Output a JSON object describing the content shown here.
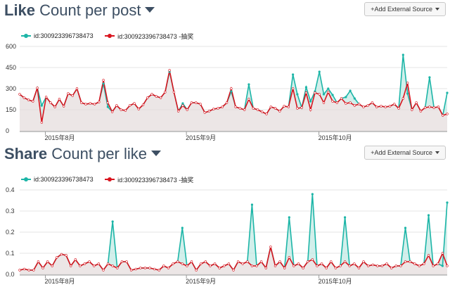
{
  "panels": [
    {
      "title_bold": "Like",
      "title_rest": " Count per post",
      "button_label": "+Add External Source"
    },
    {
      "title_bold": "Share",
      "title_rest": " Count per like",
      "button_label": "+Add External Source"
    }
  ],
  "colors": {
    "teal": "#1cb5a7",
    "red": "#d9141e",
    "fill": "#e6dede"
  },
  "chart_data": [
    {
      "type": "line",
      "title": "Like Count per post",
      "x_labels": [
        "2015年8月",
        "2015年9月",
        "2015年10月"
      ],
      "y_ticks": [
        "0",
        "150",
        "300",
        "450",
        "600"
      ],
      "ylim": [
        0,
        600
      ],
      "series": [
        {
          "name": "id:300923396738473",
          "values": [
            260,
            235,
            220,
            210,
            305,
            180,
            240,
            200,
            170,
            225,
            175,
            265,
            250,
            300,
            200,
            190,
            195,
            190,
            205,
            335,
            170,
            135,
            180,
            150,
            145,
            180,
            195,
            155,
            185,
            235,
            260,
            245,
            235,
            275,
            420,
            275,
            140,
            195,
            150,
            200,
            200,
            190,
            130,
            140,
            155,
            160,
            170,
            200,
            280,
            170,
            160,
            150,
            330,
            160,
            150,
            135,
            120,
            170,
            160,
            140,
            175,
            170,
            400,
            260,
            165,
            310,
            210,
            280,
            420,
            260,
            300,
            255,
            200,
            230,
            240,
            285,
            230,
            190,
            170,
            180,
            200,
            170,
            175,
            170,
            175,
            190,
            160,
            540,
            265,
            150,
            200,
            140,
            165,
            380,
            165,
            170,
            110,
            270
          ]
        },
        {
          "name": "id:300923396738473 -抽奖",
          "values": [
            260,
            235,
            220,
            210,
            305,
            60,
            240,
            200,
            170,
            225,
            175,
            265,
            250,
            300,
            200,
            190,
            195,
            190,
            205,
            360,
            200,
            135,
            180,
            150,
            145,
            180,
            195,
            155,
            185,
            235,
            260,
            245,
            235,
            275,
            430,
            275,
            140,
            180,
            150,
            200,
            200,
            190,
            130,
            140,
            155,
            160,
            170,
            200,
            300,
            170,
            160,
            150,
            225,
            160,
            150,
            135,
            120,
            170,
            160,
            140,
            175,
            170,
            300,
            160,
            165,
            270,
            150,
            270,
            260,
            200,
            275,
            210,
            200,
            230,
            195,
            200,
            180,
            190,
            170,
            180,
            200,
            170,
            175,
            170,
            175,
            190,
            160,
            230,
            340,
            150,
            200,
            140,
            165,
            170,
            165,
            170,
            110,
            120
          ]
        }
      ]
    },
    {
      "type": "line",
      "title": "Share Count per like",
      "x_labels": [
        "2015年8月",
        "2015年9月",
        "2015年10月"
      ],
      "y_ticks": [
        "0.0",
        "0.1",
        "0.2",
        "0.3",
        "0.4"
      ],
      "ylim": [
        0,
        0.4
      ],
      "series": [
        {
          "name": "id:300923396738473",
          "values": [
            0.02,
            0.025,
            0.02,
            0.02,
            0.06,
            0.03,
            0.06,
            0.04,
            0.08,
            0.095,
            0.09,
            0.04,
            0.07,
            0.04,
            0.05,
            0.06,
            0.04,
            0.05,
            0.02,
            0.05,
            0.25,
            0.03,
            0.06,
            0.06,
            0.02,
            0.025,
            0.03,
            0.03,
            0.03,
            0.025,
            0.02,
            0.04,
            0.03,
            0.05,
            0.06,
            0.22,
            0.04,
            0.06,
            0.02,
            0.05,
            0.06,
            0.04,
            0.05,
            0.03,
            0.04,
            0.05,
            0.02,
            0.06,
            0.05,
            0.06,
            0.33,
            0.04,
            0.06,
            0.03,
            0.13,
            0.04,
            0.06,
            0.03,
            0.27,
            0.04,
            0.05,
            0.03,
            0.06,
            0.38,
            0.04,
            0.05,
            0.03,
            0.06,
            0.03,
            0.04,
            0.27,
            0.04,
            0.05,
            0.03,
            0.06,
            0.04,
            0.045,
            0.04,
            0.04,
            0.05,
            0.03,
            0.04,
            0.04,
            0.22,
            0.06,
            0.05,
            0.04,
            0.05,
            0.28,
            0.04,
            0.05,
            0.04,
            0.34
          ]
        },
        {
          "name": "id:300923396738473 -抽奖",
          "values": [
            0.02,
            0.025,
            0.02,
            0.02,
            0.06,
            0.03,
            0.06,
            0.04,
            0.08,
            0.095,
            0.09,
            0.04,
            0.07,
            0.04,
            0.05,
            0.06,
            0.04,
            0.05,
            0.02,
            0.05,
            0.04,
            0.03,
            0.06,
            0.06,
            0.02,
            0.025,
            0.03,
            0.03,
            0.03,
            0.025,
            0.02,
            0.04,
            0.03,
            0.05,
            0.06,
            0.05,
            0.04,
            0.06,
            0.02,
            0.05,
            0.06,
            0.04,
            0.05,
            0.03,
            0.04,
            0.05,
            0.02,
            0.06,
            0.05,
            0.06,
            0.04,
            0.04,
            0.06,
            0.03,
            0.13,
            0.04,
            0.06,
            0.03,
            0.08,
            0.04,
            0.05,
            0.03,
            0.06,
            0.07,
            0.04,
            0.05,
            0.03,
            0.06,
            0.03,
            0.04,
            0.06,
            0.04,
            0.05,
            0.03,
            0.06,
            0.04,
            0.045,
            0.04,
            0.04,
            0.05,
            0.03,
            0.04,
            0.04,
            0.06,
            0.06,
            0.05,
            0.04,
            0.05,
            0.09,
            0.04,
            0.05,
            0.1,
            0.04
          ]
        }
      ]
    }
  ]
}
